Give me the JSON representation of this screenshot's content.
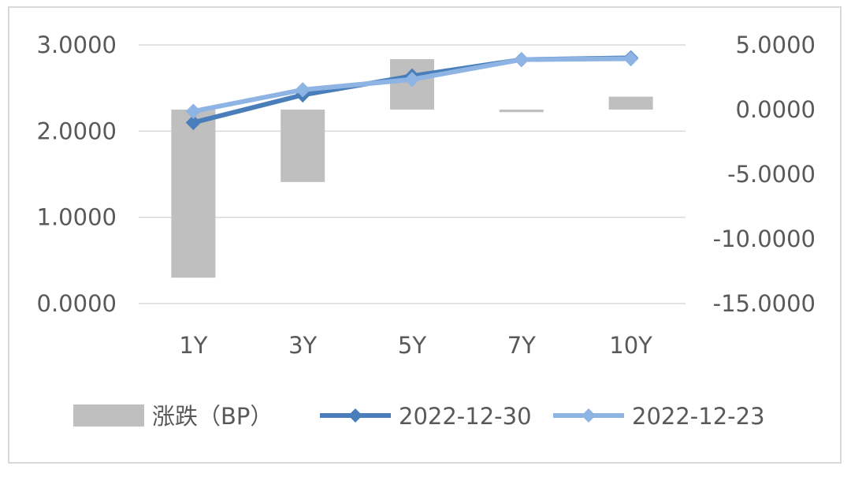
{
  "chart_data": {
    "type": "bar+line",
    "categories": [
      "1Y",
      "3Y",
      "5Y",
      "7Y",
      "10Y"
    ],
    "bar_series": {
      "name": "涨跌（BP）",
      "axis": "right",
      "values": [
        -13.0,
        -5.6,
        3.9,
        -0.2,
        1.0
      ]
    },
    "line_series": [
      {
        "name": "2022-12-30",
        "axis": "left",
        "values": [
          2.1,
          2.42,
          2.64,
          2.83,
          2.85
        ]
      },
      {
        "name": "2022-12-23",
        "axis": "left",
        "values": [
          2.23,
          2.48,
          2.6,
          2.83,
          2.84
        ]
      }
    ],
    "left_axis": {
      "ylim": [
        0,
        3
      ],
      "ticks": [
        "0.0000",
        "1.0000",
        "2.0000",
        "3.0000"
      ]
    },
    "right_axis": {
      "ylim": [
        -15,
        5
      ],
      "ticks": [
        "-15.0000",
        "-10.0000",
        "-5.0000",
        "0.0000",
        "5.0000"
      ]
    },
    "grid": true,
    "legend_position": "bottom",
    "colors": {
      "bar": "#bfbfbf",
      "line1": "#4a7ebb",
      "line2": "#8eb4e3",
      "grid": "#d9d9d9",
      "text": "#595959"
    }
  }
}
